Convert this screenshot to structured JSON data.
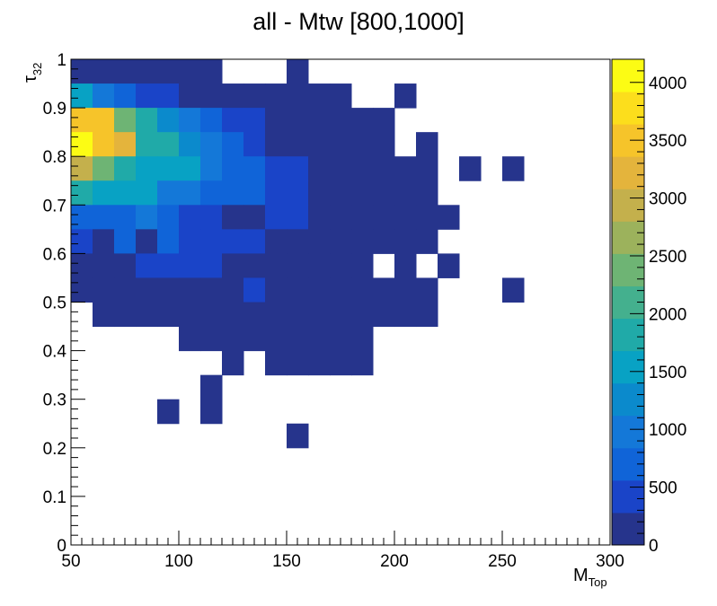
{
  "chart_data": {
    "type": "heatmap",
    "title": "all - Mtw [800,1000]",
    "xlabel": "M",
    "xlabel_sub": "Top",
    "ylabel": "τ",
    "ylabel_sub": "32",
    "xlim": [
      50,
      300
    ],
    "ylim": [
      0,
      1
    ],
    "zlim": [
      0,
      4200
    ],
    "x_bin_width": 10,
    "y_bin_width": 0.05,
    "grid": false,
    "x_ticks": [
      50,
      100,
      150,
      200,
      250,
      300
    ],
    "x_tick_labels": [
      "50",
      "100",
      "150",
      "200",
      "250",
      "300"
    ],
    "y_ticks": [
      0,
      0.1,
      0.2,
      0.3,
      0.4,
      0.5,
      0.6,
      0.7,
      0.8,
      0.9,
      1
    ],
    "y_tick_labels": [
      "0",
      "0.1",
      "0.2",
      "0.3",
      "0.4",
      "0.5",
      "0.6",
      "0.7",
      "0.8",
      "0.9",
      "1"
    ],
    "colorbar_ticks": [
      0,
      500,
      1000,
      1500,
      2000,
      2500,
      3000,
      3500,
      4000
    ],
    "colorbar_tick_labels": [
      "0",
      "500",
      "1000",
      "1500",
      "2000",
      "2500",
      "3000",
      "3500",
      "4000"
    ],
    "colorbar_palette": [
      "#26348c",
      "#1a44c8",
      "#1064d8",
      "#1478d8",
      "#0b8acc",
      "#08a2c4",
      "#20aaa8",
      "#44b08e",
      "#6eb474",
      "#9cb25c",
      "#c4b04c",
      "#e4b43c",
      "#f6c42a",
      "#fcde1c",
      "#fcfc14"
    ],
    "cells": [
      {
        "x": 50,
        "y": 0.95,
        "z": 150
      },
      {
        "x": 60,
        "y": 0.95,
        "z": 150
      },
      {
        "x": 70,
        "y": 0.95,
        "z": 150
      },
      {
        "x": 80,
        "y": 0.95,
        "z": 150
      },
      {
        "x": 90,
        "y": 0.95,
        "z": 150
      },
      {
        "x": 100,
        "y": 0.95,
        "z": 150
      },
      {
        "x": 110,
        "y": 0.95,
        "z": 150
      },
      {
        "x": 150,
        "y": 0.95,
        "z": 150
      },
      {
        "x": 50,
        "y": 0.9,
        "z": 1500
      },
      {
        "x": 60,
        "y": 0.9,
        "z": 1000
      },
      {
        "x": 70,
        "y": 0.9,
        "z": 700
      },
      {
        "x": 80,
        "y": 0.9,
        "z": 500
      },
      {
        "x": 90,
        "y": 0.9,
        "z": 500
      },
      {
        "x": 100,
        "y": 0.9,
        "z": 150
      },
      {
        "x": 110,
        "y": 0.9,
        "z": 150
      },
      {
        "x": 120,
        "y": 0.9,
        "z": 150
      },
      {
        "x": 130,
        "y": 0.9,
        "z": 150
      },
      {
        "x": 140,
        "y": 0.9,
        "z": 150
      },
      {
        "x": 150,
        "y": 0.9,
        "z": 150
      },
      {
        "x": 160,
        "y": 0.9,
        "z": 150
      },
      {
        "x": 170,
        "y": 0.9,
        "z": 150
      },
      {
        "x": 200,
        "y": 0.9,
        "z": 150
      },
      {
        "x": 50,
        "y": 0.85,
        "z": 3600
      },
      {
        "x": 60,
        "y": 0.85,
        "z": 3400
      },
      {
        "x": 70,
        "y": 0.85,
        "z": 2500
      },
      {
        "x": 80,
        "y": 0.85,
        "z": 1900
      },
      {
        "x": 90,
        "y": 0.85,
        "z": 1200
      },
      {
        "x": 100,
        "y": 0.85,
        "z": 900
      },
      {
        "x": 110,
        "y": 0.85,
        "z": 650
      },
      {
        "x": 120,
        "y": 0.85,
        "z": 400
      },
      {
        "x": 130,
        "y": 0.85,
        "z": 400
      },
      {
        "x": 140,
        "y": 0.85,
        "z": 150
      },
      {
        "x": 150,
        "y": 0.85,
        "z": 150
      },
      {
        "x": 160,
        "y": 0.85,
        "z": 150
      },
      {
        "x": 170,
        "y": 0.85,
        "z": 150
      },
      {
        "x": 180,
        "y": 0.85,
        "z": 150
      },
      {
        "x": 190,
        "y": 0.85,
        "z": 150
      },
      {
        "x": 50,
        "y": 0.8,
        "z": 4100
      },
      {
        "x": 60,
        "y": 0.8,
        "z": 3500
      },
      {
        "x": 70,
        "y": 0.8,
        "z": 3100
      },
      {
        "x": 80,
        "y": 0.8,
        "z": 1800
      },
      {
        "x": 90,
        "y": 0.8,
        "z": 1800
      },
      {
        "x": 100,
        "y": 0.8,
        "z": 1300
      },
      {
        "x": 110,
        "y": 0.8,
        "z": 900
      },
      {
        "x": 120,
        "y": 0.8,
        "z": 700
      },
      {
        "x": 130,
        "y": 0.8,
        "z": 400
      },
      {
        "x": 140,
        "y": 0.8,
        "z": 150
      },
      {
        "x": 150,
        "y": 0.8,
        "z": 150
      },
      {
        "x": 160,
        "y": 0.8,
        "z": 150
      },
      {
        "x": 170,
        "y": 0.8,
        "z": 150
      },
      {
        "x": 180,
        "y": 0.8,
        "z": 150
      },
      {
        "x": 190,
        "y": 0.8,
        "z": 150
      },
      {
        "x": 210,
        "y": 0.8,
        "z": 150
      },
      {
        "x": 50,
        "y": 0.75,
        "z": 3000
      },
      {
        "x": 60,
        "y": 0.75,
        "z": 2500
      },
      {
        "x": 70,
        "y": 0.75,
        "z": 1900
      },
      {
        "x": 80,
        "y": 0.75,
        "z": 1500
      },
      {
        "x": 90,
        "y": 0.75,
        "z": 1500
      },
      {
        "x": 100,
        "y": 0.75,
        "z": 1400
      },
      {
        "x": 110,
        "y": 0.75,
        "z": 900
      },
      {
        "x": 120,
        "y": 0.75,
        "z": 700
      },
      {
        "x": 130,
        "y": 0.75,
        "z": 700
      },
      {
        "x": 140,
        "y": 0.75,
        "z": 500
      },
      {
        "x": 150,
        "y": 0.75,
        "z": 500
      },
      {
        "x": 160,
        "y": 0.75,
        "z": 150
      },
      {
        "x": 170,
        "y": 0.75,
        "z": 150
      },
      {
        "x": 180,
        "y": 0.75,
        "z": 150
      },
      {
        "x": 190,
        "y": 0.75,
        "z": 150
      },
      {
        "x": 200,
        "y": 0.75,
        "z": 150
      },
      {
        "x": 210,
        "y": 0.75,
        "z": 150
      },
      {
        "x": 230,
        "y": 0.75,
        "z": 150
      },
      {
        "x": 250,
        "y": 0.75,
        "z": 150
      },
      {
        "x": 50,
        "y": 0.7,
        "z": 1900
      },
      {
        "x": 60,
        "y": 0.7,
        "z": 1500
      },
      {
        "x": 70,
        "y": 0.7,
        "z": 1500
      },
      {
        "x": 80,
        "y": 0.7,
        "z": 1500
      },
      {
        "x": 90,
        "y": 0.7,
        "z": 1100
      },
      {
        "x": 100,
        "y": 0.7,
        "z": 1100
      },
      {
        "x": 110,
        "y": 0.7,
        "z": 800
      },
      {
        "x": 120,
        "y": 0.7,
        "z": 700
      },
      {
        "x": 130,
        "y": 0.7,
        "z": 700
      },
      {
        "x": 140,
        "y": 0.7,
        "z": 500
      },
      {
        "x": 150,
        "y": 0.7,
        "z": 500
      },
      {
        "x": 160,
        "y": 0.7,
        "z": 150
      },
      {
        "x": 170,
        "y": 0.7,
        "z": 150
      },
      {
        "x": 180,
        "y": 0.7,
        "z": 150
      },
      {
        "x": 190,
        "y": 0.7,
        "z": 150
      },
      {
        "x": 200,
        "y": 0.7,
        "z": 150
      },
      {
        "x": 210,
        "y": 0.7,
        "z": 150
      },
      {
        "x": 50,
        "y": 0.65,
        "z": 700
      },
      {
        "x": 60,
        "y": 0.65,
        "z": 700
      },
      {
        "x": 70,
        "y": 0.65,
        "z": 700
      },
      {
        "x": 80,
        "y": 0.65,
        "z": 1000
      },
      {
        "x": 90,
        "y": 0.65,
        "z": 800
      },
      {
        "x": 100,
        "y": 0.65,
        "z": 500
      },
      {
        "x": 110,
        "y": 0.65,
        "z": 500
      },
      {
        "x": 120,
        "y": 0.65,
        "z": 150
      },
      {
        "x": 130,
        "y": 0.65,
        "z": 150
      },
      {
        "x": 140,
        "y": 0.65,
        "z": 500
      },
      {
        "x": 150,
        "y": 0.65,
        "z": 500
      },
      {
        "x": 160,
        "y": 0.65,
        "z": 150
      },
      {
        "x": 170,
        "y": 0.65,
        "z": 150
      },
      {
        "x": 180,
        "y": 0.65,
        "z": 150
      },
      {
        "x": 190,
        "y": 0.65,
        "z": 150
      },
      {
        "x": 200,
        "y": 0.65,
        "z": 150
      },
      {
        "x": 210,
        "y": 0.65,
        "z": 150
      },
      {
        "x": 220,
        "y": 0.65,
        "z": 150
      },
      {
        "x": 50,
        "y": 0.6,
        "z": 500
      },
      {
        "x": 60,
        "y": 0.6,
        "z": 150
      },
      {
        "x": 70,
        "y": 0.6,
        "z": 700
      },
      {
        "x": 80,
        "y": 0.6,
        "z": 150
      },
      {
        "x": 90,
        "y": 0.6,
        "z": 700
      },
      {
        "x": 100,
        "y": 0.6,
        "z": 350
      },
      {
        "x": 110,
        "y": 0.6,
        "z": 350
      },
      {
        "x": 120,
        "y": 0.6,
        "z": 350
      },
      {
        "x": 130,
        "y": 0.6,
        "z": 350
      },
      {
        "x": 140,
        "y": 0.6,
        "z": 150
      },
      {
        "x": 150,
        "y": 0.6,
        "z": 150
      },
      {
        "x": 160,
        "y": 0.6,
        "z": 150
      },
      {
        "x": 170,
        "y": 0.6,
        "z": 150
      },
      {
        "x": 180,
        "y": 0.6,
        "z": 150
      },
      {
        "x": 190,
        "y": 0.6,
        "z": 150
      },
      {
        "x": 200,
        "y": 0.6,
        "z": 150
      },
      {
        "x": 210,
        "y": 0.6,
        "z": 150
      },
      {
        "x": 50,
        "y": 0.55,
        "z": 150
      },
      {
        "x": 60,
        "y": 0.55,
        "z": 150
      },
      {
        "x": 70,
        "y": 0.55,
        "z": 150
      },
      {
        "x": 80,
        "y": 0.55,
        "z": 400
      },
      {
        "x": 90,
        "y": 0.55,
        "z": 400
      },
      {
        "x": 100,
        "y": 0.55,
        "z": 400
      },
      {
        "x": 110,
        "y": 0.55,
        "z": 400
      },
      {
        "x": 120,
        "y": 0.55,
        "z": 150
      },
      {
        "x": 130,
        "y": 0.55,
        "z": 150
      },
      {
        "x": 140,
        "y": 0.55,
        "z": 150
      },
      {
        "x": 150,
        "y": 0.55,
        "z": 150
      },
      {
        "x": 160,
        "y": 0.55,
        "z": 150
      },
      {
        "x": 170,
        "y": 0.55,
        "z": 150
      },
      {
        "x": 180,
        "y": 0.55,
        "z": 150
      },
      {
        "x": 200,
        "y": 0.55,
        "z": 150
      },
      {
        "x": 220,
        "y": 0.55,
        "z": 150
      },
      {
        "x": 50,
        "y": 0.5,
        "z": 150
      },
      {
        "x": 60,
        "y": 0.5,
        "z": 150
      },
      {
        "x": 70,
        "y": 0.5,
        "z": 150
      },
      {
        "x": 80,
        "y": 0.5,
        "z": 150
      },
      {
        "x": 90,
        "y": 0.5,
        "z": 150
      },
      {
        "x": 100,
        "y": 0.5,
        "z": 150
      },
      {
        "x": 110,
        "y": 0.5,
        "z": 150
      },
      {
        "x": 120,
        "y": 0.5,
        "z": 150
      },
      {
        "x": 130,
        "y": 0.5,
        "z": 500
      },
      {
        "x": 140,
        "y": 0.5,
        "z": 150
      },
      {
        "x": 150,
        "y": 0.5,
        "z": 150
      },
      {
        "x": 160,
        "y": 0.5,
        "z": 150
      },
      {
        "x": 170,
        "y": 0.5,
        "z": 150
      },
      {
        "x": 180,
        "y": 0.5,
        "z": 150
      },
      {
        "x": 190,
        "y": 0.5,
        "z": 150
      },
      {
        "x": 200,
        "y": 0.5,
        "z": 150
      },
      {
        "x": 210,
        "y": 0.5,
        "z": 150
      },
      {
        "x": 250,
        "y": 0.5,
        "z": 150
      },
      {
        "x": 60,
        "y": 0.45,
        "z": 150
      },
      {
        "x": 70,
        "y": 0.45,
        "z": 150
      },
      {
        "x": 80,
        "y": 0.45,
        "z": 150
      },
      {
        "x": 90,
        "y": 0.45,
        "z": 150
      },
      {
        "x": 100,
        "y": 0.45,
        "z": 150
      },
      {
        "x": 110,
        "y": 0.45,
        "z": 150
      },
      {
        "x": 120,
        "y": 0.45,
        "z": 150
      },
      {
        "x": 130,
        "y": 0.45,
        "z": 150
      },
      {
        "x": 140,
        "y": 0.45,
        "z": 150
      },
      {
        "x": 150,
        "y": 0.45,
        "z": 150
      },
      {
        "x": 160,
        "y": 0.45,
        "z": 150
      },
      {
        "x": 170,
        "y": 0.45,
        "z": 150
      },
      {
        "x": 180,
        "y": 0.45,
        "z": 150
      },
      {
        "x": 190,
        "y": 0.45,
        "z": 150
      },
      {
        "x": 200,
        "y": 0.45,
        "z": 150
      },
      {
        "x": 210,
        "y": 0.45,
        "z": 150
      },
      {
        "x": 100,
        "y": 0.4,
        "z": 150
      },
      {
        "x": 110,
        "y": 0.4,
        "z": 150
      },
      {
        "x": 120,
        "y": 0.4,
        "z": 150
      },
      {
        "x": 130,
        "y": 0.4,
        "z": 150
      },
      {
        "x": 140,
        "y": 0.4,
        "z": 150
      },
      {
        "x": 150,
        "y": 0.4,
        "z": 150
      },
      {
        "x": 160,
        "y": 0.4,
        "z": 150
      },
      {
        "x": 170,
        "y": 0.4,
        "z": 150
      },
      {
        "x": 180,
        "y": 0.4,
        "z": 150
      },
      {
        "x": 120,
        "y": 0.35,
        "z": 150
      },
      {
        "x": 140,
        "y": 0.35,
        "z": 150
      },
      {
        "x": 150,
        "y": 0.35,
        "z": 150
      },
      {
        "x": 160,
        "y": 0.35,
        "z": 150
      },
      {
        "x": 170,
        "y": 0.35,
        "z": 150
      },
      {
        "x": 180,
        "y": 0.35,
        "z": 150
      },
      {
        "x": 110,
        "y": 0.3,
        "z": 150
      },
      {
        "x": 90,
        "y": 0.25,
        "z": 150
      },
      {
        "x": 110,
        "y": 0.25,
        "z": 150
      },
      {
        "x": 150,
        "y": 0.2,
        "z": 150
      }
    ]
  }
}
